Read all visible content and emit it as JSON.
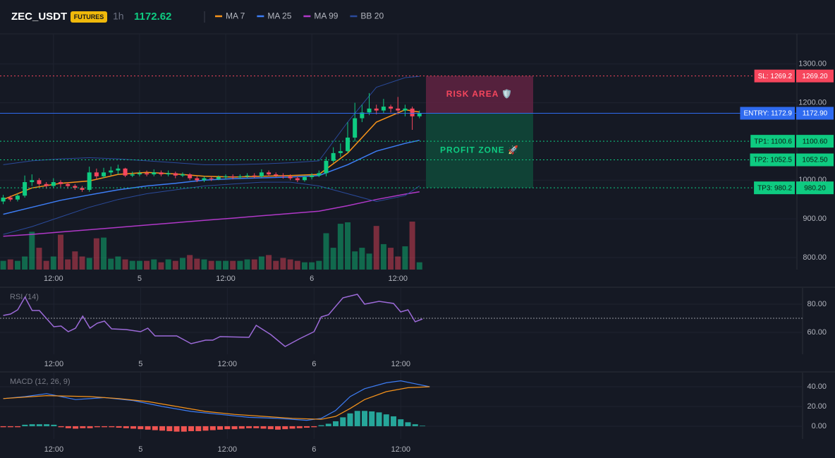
{
  "header": {
    "symbol": "ZEC_USDT",
    "badge": "FUTURES",
    "interval": "1h",
    "price": 1172.62
  },
  "chart_data": [
    {
      "type": "candlestick",
      "open": [
        945,
        955,
        950,
        960,
        995,
        1000,
        990,
        985,
        995,
        990,
        985,
        980,
        975,
        1020,
        1010,
        1020,
        1025,
        1030,
        1012,
        1015,
        1018,
        1015,
        1020,
        1015,
        1018,
        1012,
        1015,
        1005,
        1000,
        1005,
        1003,
        1008,
        1010,
        1008,
        1010,
        1012,
        1010,
        1020,
        1015,
        1012,
        1010,
        1005,
        1000,
        1008,
        1012,
        1018,
        1050,
        1070,
        1075,
        1110,
        1160,
        1175,
        1185,
        1180,
        1190,
        1185,
        1180,
        1185,
        1165
      ],
      "high": [
        962,
        960,
        965,
        1012,
        1015,
        1005,
        995,
        1005,
        1000,
        995,
        990,
        985,
        1035,
        1030,
        1032,
        1035,
        1040,
        1032,
        1022,
        1025,
        1025,
        1028,
        1025,
        1025,
        1022,
        1020,
        1018,
        1010,
        1010,
        1010,
        1012,
        1015,
        1015,
        1015,
        1018,
        1018,
        1028,
        1025,
        1020,
        1018,
        1015,
        1010,
        1012,
        1018,
        1025,
        1060,
        1085,
        1095,
        1150,
        1200,
        1195,
        1225,
        1195,
        1210,
        1195,
        1215,
        1195,
        1190,
        1180
      ],
      "low": [
        938,
        945,
        945,
        955,
        985,
        985,
        978,
        980,
        982,
        978,
        975,
        970,
        970,
        1002,
        1005,
        1012,
        1015,
        1008,
        1008,
        1010,
        1010,
        1010,
        1010,
        1010,
        1005,
        1008,
        1000,
        995,
        995,
        998,
        1000,
        1002,
        1002,
        1003,
        1005,
        1005,
        1006,
        1010,
        1008,
        1004,
        1000,
        995,
        996,
        1002,
        1008,
        1010,
        1045,
        1060,
        1070,
        1100,
        1150,
        1168,
        1170,
        1172,
        1175,
        1170,
        1165,
        1130,
        1160
      ],
      "close": [
        955,
        950,
        960,
        995,
        1000,
        990,
        985,
        995,
        990,
        985,
        980,
        975,
        1020,
        1010,
        1020,
        1025,
        1030,
        1012,
        1015,
        1018,
        1015,
        1020,
        1015,
        1018,
        1012,
        1015,
        1005,
        1000,
        1005,
        1003,
        1008,
        1010,
        1008,
        1010,
        1012,
        1010,
        1020,
        1015,
        1012,
        1010,
        1005,
        1000,
        1008,
        1012,
        1018,
        1050,
        1070,
        1075,
        1110,
        1160,
        1175,
        1185,
        1180,
        1190,
        1185,
        1180,
        1185,
        1165,
        1172.9
      ],
      "volume": [
        12,
        14,
        12,
        18,
        52,
        30,
        12,
        18,
        48,
        14,
        25,
        18,
        16,
        43,
        44,
        15,
        18,
        14,
        12,
        12,
        12,
        14,
        10,
        14,
        12,
        16,
        20,
        15,
        14,
        12,
        12,
        12,
        12,
        12,
        14,
        14,
        18,
        20,
        12,
        16,
        14,
        12,
        10,
        10,
        12,
        50,
        30,
        63,
        65,
        25,
        30,
        22,
        60,
        35,
        30,
        18,
        32,
        66,
        10
      ],
      "up_color": "#0ecb81",
      "down_color": "#f6465d",
      "series": [
        {
          "name": "MA 7",
          "color": "#f7931a",
          "x": [
            0,
            4,
            8,
            12,
            16,
            20,
            24,
            28,
            32,
            36,
            40,
            44,
            48,
            52,
            56,
            58
          ],
          "values": [
            950,
            980,
            992,
            998,
            1015,
            1020,
            1016,
            1010,
            1008,
            1010,
            1012,
            1015,
            1070,
            1150,
            1182,
            1176
          ]
        },
        {
          "name": "MA 25",
          "color": "#3d7df5",
          "x": [
            0,
            4,
            8,
            12,
            16,
            20,
            24,
            28,
            32,
            36,
            40,
            44,
            48,
            52,
            56,
            58
          ],
          "values": [
            912,
            930,
            948,
            962,
            975,
            985,
            992,
            1000,
            1004,
            1006,
            1008,
            1012,
            1040,
            1075,
            1095,
            1103
          ]
        },
        {
          "name": "MA 99",
          "color": "#b038c8",
          "x": [
            0,
            4,
            8,
            12,
            16,
            20,
            24,
            28,
            32,
            36,
            40,
            44,
            48,
            52,
            56,
            58
          ],
          "values": [
            855,
            860,
            866,
            872,
            878,
            884,
            890,
            896,
            902,
            908,
            914,
            920,
            934,
            950,
            964,
            970
          ]
        },
        {
          "name": "BB 20",
          "color": "#2a4a9a",
          "x": [
            0,
            4,
            8,
            12,
            16,
            20,
            24,
            28,
            32,
            36,
            40,
            44,
            48,
            52,
            56,
            58
          ],
          "upper": [
            1040,
            1050,
            1055,
            1058,
            1055,
            1050,
            1045,
            1040,
            1040,
            1042,
            1045,
            1050,
            1150,
            1240,
            1265,
            1268
          ],
          "lower": [
            860,
            880,
            905,
            930,
            950,
            965,
            975,
            985,
            990,
            995,
            995,
            985,
            965,
            945,
            960,
            985
          ]
        }
      ],
      "levels": [
        {
          "value": 1269.2,
          "label": "SL: 1269.2",
          "price_label": "1269.20",
          "color": "#f6465d",
          "text_color": "#ffffff",
          "style": "dotted"
        },
        {
          "value": 1172.9,
          "label": "ENTRY: 1172.9",
          "price_label": "1172.90",
          "color": "#2f6bf0",
          "text_color": "#ffffff",
          "style": "solid"
        },
        {
          "value": 1100.6,
          "label": "TP1: 1100.6",
          "price_label": "1100.60",
          "color": "#0ecb81",
          "text_color": "#0b1a12",
          "style": "dotted"
        },
        {
          "value": 1052.5,
          "label": "TP2: 1052.5",
          "price_label": "1052.50",
          "color": "#0ecb81",
          "text_color": "#0b1a12",
          "style": "dotted"
        },
        {
          "value": 980.2,
          "label": "TP3: 980.2",
          "price_label": "980.20",
          "color": "#0ecb81",
          "text_color": "#0b1a12",
          "style": "dotted"
        }
      ],
      "annotations": [
        "RISK AREA 🛡️",
        "PROFIT ZONE 🚀"
      ],
      "xlim": [
        -0.45,
        110.6
      ],
      "xticks": [
        {
          "value": 7,
          "label": "12:00"
        },
        {
          "value": 19,
          "label": "5"
        },
        {
          "value": 31,
          "label": "12:00"
        },
        {
          "value": 43,
          "label": "6"
        },
        {
          "value": 55,
          "label": "12:00"
        }
      ],
      "ylim": [
        769,
        1378
      ],
      "yticks": [
        {
          "value": 800,
          "label": "800.00"
        },
        {
          "value": 900,
          "label": "900.00"
        },
        {
          "value": 1000,
          "label": "1000.00"
        },
        {
          "value": 1200,
          "label": "1200.00"
        },
        {
          "value": 1300,
          "label": "1300.00"
        }
      ],
      "grid": true
    },
    {
      "type": "line",
      "title": "RSI (14)",
      "series": [
        {
          "color": "#9c6ad8",
          "x": [
            0,
            1,
            2,
            3,
            4,
            5,
            7,
            8,
            9,
            10,
            11,
            12,
            13,
            14,
            15,
            17,
            19,
            20,
            21,
            24,
            26,
            28,
            29,
            30,
            34,
            35,
            37,
            39,
            41,
            43,
            44,
            45,
            47,
            49,
            50,
            52,
            54,
            55,
            56,
            57,
            58
          ],
          "values": [
            72,
            73,
            76,
            85,
            75.5,
            75.5,
            64,
            64.5,
            60.5,
            63,
            71.5,
            63,
            66.5,
            68,
            62.5,
            62,
            60.5,
            63,
            57.5,
            57.5,
            52,
            54.5,
            54.5,
            57,
            56.5,
            65,
            58.5,
            50,
            55.5,
            60.5,
            71,
            72.5,
            84.5,
            87,
            80,
            82,
            80.5,
            74.5,
            76,
            67.5,
            69.5
          ]
        }
      ],
      "reference_lines": [
        70
      ],
      "xlim": [
        -0.45,
        110.6
      ],
      "xticks": [
        {
          "value": 7,
          "label": "12:00"
        },
        {
          "value": 19,
          "label": "5"
        },
        {
          "value": 31,
          "label": "12:00"
        },
        {
          "value": 43,
          "label": "6"
        },
        {
          "value": 55,
          "label": "12:00"
        }
      ],
      "ylim": [
        44.5,
        91.5
      ],
      "yticks": [
        {
          "value": 60,
          "label": "60.00"
        },
        {
          "value": 80,
          "label": "80.00"
        }
      ],
      "grid": true
    },
    {
      "type": "macd",
      "title": "MACD (12, 26, 9)",
      "histogram": [
        -1,
        -1,
        -1,
        1.5,
        2,
        2,
        2,
        1.5,
        -1,
        -2,
        -2.5,
        -2,
        -2,
        -1,
        -1,
        -1,
        -1.5,
        -2,
        -2.5,
        -3,
        -3.5,
        -4,
        -4.5,
        -5,
        -5.5,
        -5.5,
        -5,
        -5,
        -4.5,
        -4,
        -3.5,
        -3,
        -3,
        -2.5,
        -2,
        -2,
        -2.5,
        -3,
        -3.5,
        -3,
        -2.5,
        -2,
        -1.5,
        -1,
        1,
        2.5,
        5,
        9,
        13,
        15.5,
        15.5,
        15,
        14,
        12,
        10,
        7,
        4,
        2,
        0.5
      ],
      "positive_color": "#26a69a",
      "negative_color": "#ef5350",
      "series": [
        {
          "color": "#3d7df5",
          "x": [
            0,
            3,
            6,
            8,
            10,
            14,
            18,
            22,
            26,
            30,
            34,
            38,
            42,
            44,
            46,
            48,
            50,
            53,
            55,
            57,
            59
          ],
          "values": [
            28,
            30,
            33,
            30,
            27,
            29,
            26,
            20,
            15,
            12,
            9,
            8,
            6,
            8,
            16,
            30,
            38,
            44,
            46,
            43,
            40
          ]
        },
        {
          "color": "#f7931a",
          "x": [
            0,
            6,
            12,
            16,
            20,
            24,
            28,
            32,
            36,
            40,
            44,
            46,
            48,
            50,
            53,
            56,
            59
          ],
          "values": [
            28,
            31,
            30,
            28,
            25,
            20,
            15,
            12,
            10,
            8,
            7,
            10,
            18,
            27,
            35,
            39,
            40
          ]
        }
      ],
      "xlim": [
        -0.45,
        110.6
      ],
      "xticks": [
        {
          "value": 7,
          "label": "12:00"
        },
        {
          "value": 19,
          "label": "5"
        },
        {
          "value": 31,
          "label": "12:00"
        },
        {
          "value": 43,
          "label": "6"
        },
        {
          "value": 55,
          "label": "12:00"
        }
      ],
      "ylim": [
        -12.9,
        54.3
      ],
      "yticks": [
        {
          "value": 0,
          "label": "0.00"
        },
        {
          "value": 20,
          "label": "20.00"
        },
        {
          "value": 40,
          "label": "40.00"
        }
      ],
      "grid": true
    }
  ]
}
